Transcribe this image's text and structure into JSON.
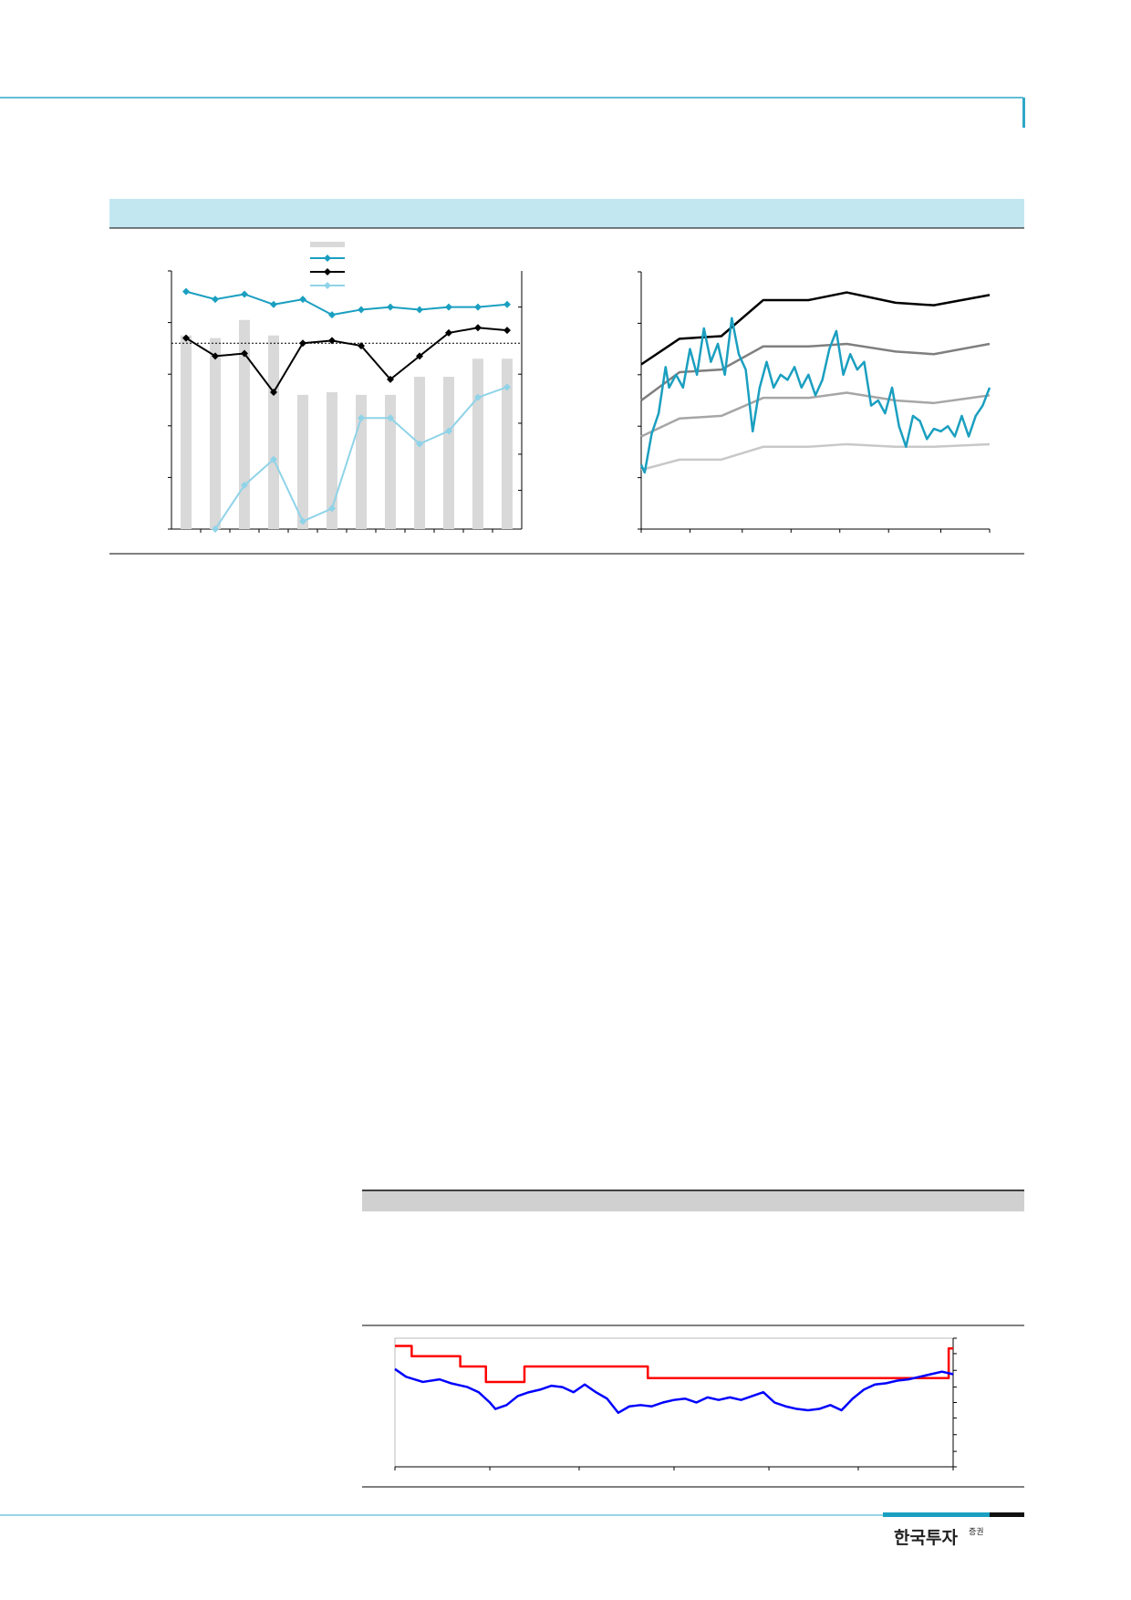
{
  "footer": {
    "brand": "한국투자",
    "brand_suffix": "증권"
  },
  "chart_data": [
    {
      "type": "combo",
      "categories": [
        null,
        null,
        null,
        null,
        null,
        null,
        null,
        null,
        null,
        null,
        null,
        null
      ],
      "ylim": [
        0,
        100
      ],
      "yticks": [
        0,
        20,
        40,
        60,
        80,
        100
      ],
      "y2lim": [
        0,
        100
      ],
      "y2ticks": [
        15,
        29,
        41,
        60,
        86
      ],
      "reference_line": 72,
      "legend": "top",
      "series": [
        {
          "type": "bar",
          "color": "#d9d9d9",
          "values": [
            75,
            74,
            81,
            75,
            52,
            53,
            52,
            52,
            59,
            59,
            66,
            66
          ]
        },
        {
          "type": "line",
          "color": "#1a9fc0",
          "marker": "diamond",
          "values": [
            92,
            89,
            91,
            87,
            89,
            83,
            85,
            86,
            85,
            86,
            86,
            87
          ]
        },
        {
          "type": "line",
          "color": "#000000",
          "marker": "diamond",
          "values": [
            74,
            67,
            68,
            53,
            72,
            73,
            71,
            58,
            67,
            76,
            78,
            77
          ]
        },
        {
          "type": "line",
          "color": "#8fd3e8",
          "marker": "diamond",
          "values": [
            null,
            0,
            17,
            27,
            3,
            8,
            43,
            43,
            33,
            38,
            51,
            55
          ]
        }
      ]
    },
    {
      "type": "line",
      "xlim": [
        0,
        100
      ],
      "ylim": [
        0,
        100
      ],
      "xticks": [
        0,
        14,
        29,
        43,
        57,
        71,
        86,
        100
      ],
      "yticks": [
        0,
        20,
        40,
        60,
        80,
        100
      ],
      "axis_side": "left",
      "series": [
        {
          "color": "#000000",
          "x": [
            0,
            11,
            23,
            35,
            48,
            59,
            73,
            84,
            100
          ],
          "values": [
            64,
            74,
            75,
            89,
            89,
            92,
            88,
            87,
            91
          ]
        },
        {
          "color": "#7f7f7f",
          "x": [
            0,
            11,
            23,
            35,
            48,
            59,
            73,
            84,
            100
          ],
          "values": [
            50,
            61,
            62,
            71,
            71,
            72,
            69,
            68,
            72
          ]
        },
        {
          "color": "#a6a6a6",
          "x": [
            0,
            11,
            23,
            35,
            48,
            59,
            73,
            84,
            100
          ],
          "values": [
            36,
            43,
            44,
            51,
            51,
            53,
            50,
            49,
            52
          ]
        },
        {
          "color": "#c8c8c8",
          "x": [
            0,
            11,
            23,
            35,
            48,
            59,
            73,
            84,
            100
          ],
          "values": [
            23,
            27,
            27,
            32,
            32,
            33,
            32,
            32,
            33
          ]
        },
        {
          "color": "#1a9fc0",
          "x": [
            0,
            1,
            3,
            5,
            7,
            8,
            10,
            12,
            14,
            16,
            18,
            20,
            22,
            24,
            26,
            28,
            30,
            32,
            34,
            36,
            38,
            40,
            42,
            44,
            46,
            48,
            50,
            52,
            54,
            56,
            58,
            60,
            62,
            64,
            66,
            68,
            70,
            72,
            74,
            76,
            78,
            80,
            82,
            84,
            86,
            88,
            90,
            92,
            94,
            96,
            98,
            100
          ],
          "values": [
            25,
            22,
            37,
            45,
            63,
            55,
            60,
            55,
            70,
            60,
            78,
            65,
            72,
            60,
            82,
            68,
            62,
            38,
            55,
            65,
            55,
            60,
            58,
            63,
            55,
            60,
            52,
            58,
            70,
            77,
            60,
            68,
            62,
            65,
            48,
            50,
            45,
            55,
            40,
            32,
            44,
            42,
            35,
            39,
            38,
            40,
            36,
            44,
            36,
            44,
            48,
            55
          ]
        }
      ]
    },
    {
      "type": "line",
      "xlim": [
        0,
        100
      ],
      "ylim": [
        0,
        100
      ],
      "xticks": [
        0,
        17,
        33,
        50,
        67,
        83,
        100
      ],
      "yticks": [
        0,
        12,
        25,
        38,
        50,
        62,
        75,
        88,
        100
      ],
      "axis_side": "right",
      "series": [
        {
          "color": "#ff0000",
          "x": [
            0,
            3,
            3,
            11.7,
            11.7,
            16.3,
            16.3,
            23.2,
            23.2,
            45.3,
            45.3,
            99.2,
            99.2,
            100
          ],
          "values": [
            94,
            94,
            86,
            86,
            78,
            78,
            66,
            66,
            78,
            78,
            69,
            69,
            92,
            92
          ]
        },
        {
          "color": "#0000ff",
          "x": [
            0,
            2,
            5,
            8,
            10,
            13,
            15,
            17,
            18,
            20,
            22,
            24,
            26,
            28,
            30,
            32,
            34,
            36,
            38,
            40,
            42,
            44,
            46,
            48,
            50,
            52,
            54,
            56,
            58,
            60,
            62,
            64,
            66,
            68,
            70,
            72,
            74,
            76,
            78,
            80,
            82,
            84,
            86,
            88,
            90,
            92,
            94,
            96,
            98,
            100
          ],
          "values": [
            76,
            70,
            66,
            68,
            65,
            62,
            58,
            50,
            45,
            48,
            55,
            58,
            60,
            63,
            62,
            58,
            64,
            58,
            53,
            42,
            47,
            48,
            47,
            50,
            52,
            53,
            50,
            54,
            52,
            54,
            52,
            55,
            58,
            50,
            47,
            45,
            44,
            45,
            48,
            44,
            53,
            60,
            64,
            65,
            67,
            68,
            70,
            72,
            74,
            72
          ]
        }
      ]
    }
  ]
}
